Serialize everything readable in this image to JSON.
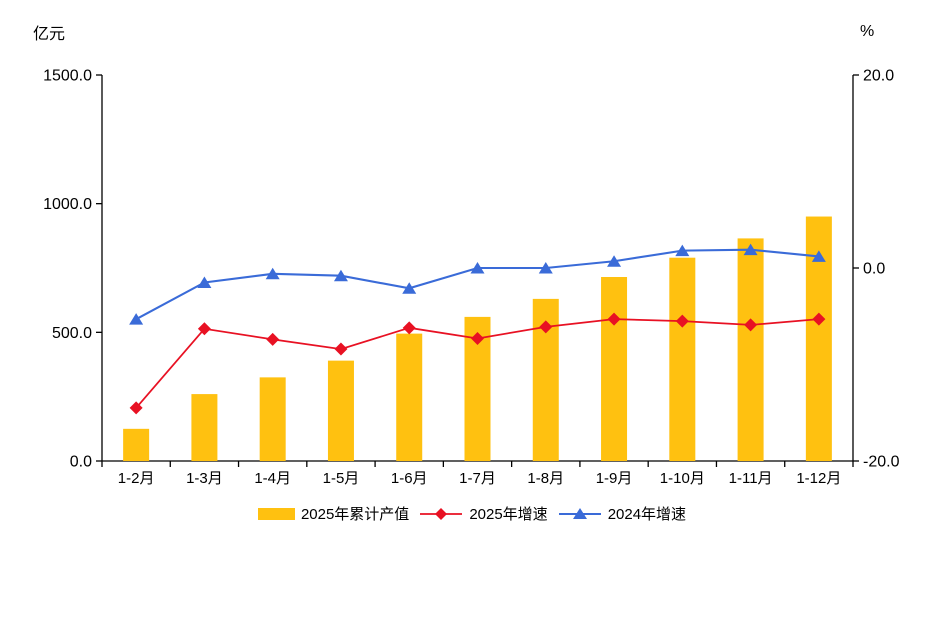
{
  "axes": {
    "left_title": "亿元",
    "right_title": "%"
  },
  "chart_data": {
    "type": "bar+line combo, dual axis",
    "categories": [
      "1-2月",
      "1-3月",
      "1-4月",
      "1-5月",
      "1-6月",
      "1-7月",
      "1-8月",
      "1-9月",
      "1-10月",
      "1-11月",
      "1-12月"
    ],
    "left_axis": {
      "title": "亿元",
      "min": 0,
      "max": 1500,
      "tick_values": [
        0,
        500,
        1000,
        1500
      ],
      "tick_labels": [
        "0.0",
        "500.0",
        "1000.0",
        "1500.0"
      ]
    },
    "right_axis": {
      "title": "%",
      "min": -20,
      "max": 20,
      "tick_values": [
        -20,
        0,
        20
      ],
      "tick_labels": [
        "-20.0",
        "0.0",
        "20.0"
      ]
    },
    "grid": false,
    "legend_position": "bottom",
    "series": [
      {
        "name": "2025年累计产值",
        "type": "bar",
        "axis": "left",
        "color": "#FFC110",
        "values": [
          125,
          260,
          325,
          390,
          495,
          560,
          630,
          715,
          790,
          865,
          950
        ]
      },
      {
        "name": "2025年增速",
        "type": "line",
        "marker": "diamond",
        "axis": "right",
        "color": "#E81123",
        "values": [
          -14.5,
          -6.3,
          -7.4,
          -8.4,
          -6.2,
          -7.3,
          -6.1,
          -5.3,
          -5.5,
          -5.9,
          -5.3
        ]
      },
      {
        "name": "2024年增速",
        "type": "line",
        "marker": "triangle-up",
        "axis": "right",
        "color": "#3A6BD8",
        "values": [
          -5.3,
          -1.5,
          -0.6,
          -0.8,
          -2.1,
          0.0,
          0.0,
          0.7,
          1.8,
          1.9,
          1.2
        ]
      }
    ],
    "axis_color": "#000000"
  }
}
